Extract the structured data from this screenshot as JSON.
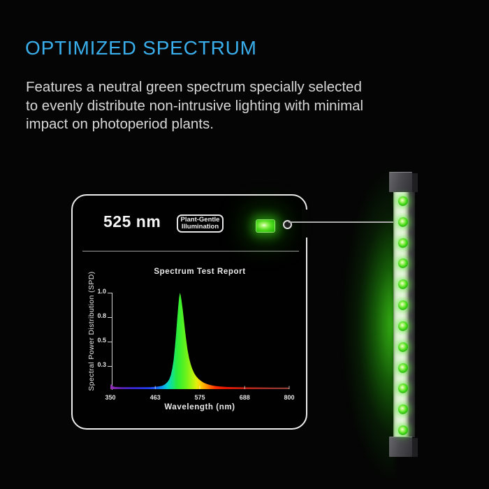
{
  "colors": {
    "background": "#050505",
    "accent_blue": "#3aaeea",
    "body_text": "#d8d8d8",
    "card_border": "#ededed",
    "led_green": "#3fd818",
    "glow_green": "#2bc40e",
    "callout_line": "#ababab"
  },
  "header": {
    "title": "OPTIMIZED SPECTRUM",
    "description": "Features a neutral green spectrum specially selected\nto evenly distribute non-intrusive lighting with minimal\nimpact on photoperiod plants."
  },
  "card": {
    "wavelength": "525 nm",
    "badge": {
      "line1": "Plant-Gentle",
      "line2": "Illumination"
    }
  },
  "chart_data": {
    "type": "area",
    "title": "Spectrum Test Report",
    "xlabel": "Wavelength (nm)",
    "ylabel": "Spectral Power Distribution (SPD)",
    "x_ticks": [
      350,
      463,
      575,
      688,
      800
    ],
    "y_tick_labels": [
      "1.0",
      "0.8",
      "0.5",
      "0.3"
    ],
    "xlim": [
      350,
      800
    ],
    "ylim": [
      0,
      1.0
    ],
    "peak_wavelength_nm": 525,
    "peak_value": 1.0,
    "grid": false,
    "points": [
      [
        350,
        0.02
      ],
      [
        351,
        0.052
      ],
      [
        353,
        0.046
      ],
      [
        356,
        0.03
      ],
      [
        360,
        0.023
      ],
      [
        380,
        0.02
      ],
      [
        420,
        0.02
      ],
      [
        450,
        0.02
      ],
      [
        463,
        0.023
      ],
      [
        472,
        0.027
      ],
      [
        480,
        0.034
      ],
      [
        487,
        0.048
      ],
      [
        493,
        0.07
      ],
      [
        498,
        0.1
      ],
      [
        502,
        0.145
      ],
      [
        506,
        0.215
      ],
      [
        509,
        0.3
      ],
      [
        512,
        0.42
      ],
      [
        515,
        0.56
      ],
      [
        518,
        0.72
      ],
      [
        521,
        0.87
      ],
      [
        523,
        0.95
      ],
      [
        525,
        1.0
      ],
      [
        527,
        0.97
      ],
      [
        529,
        0.92
      ],
      [
        532,
        0.83
      ],
      [
        535,
        0.72
      ],
      [
        538,
        0.6
      ],
      [
        541,
        0.5
      ],
      [
        544,
        0.41
      ],
      [
        548,
        0.325
      ],
      [
        552,
        0.26
      ],
      [
        556,
        0.21
      ],
      [
        561,
        0.165
      ],
      [
        566,
        0.132
      ],
      [
        572,
        0.105
      ],
      [
        578,
        0.085
      ],
      [
        585,
        0.066
      ],
      [
        593,
        0.052
      ],
      [
        602,
        0.041
      ],
      [
        612,
        0.033
      ],
      [
        625,
        0.027
      ],
      [
        645,
        0.022
      ],
      [
        670,
        0.02
      ],
      [
        688,
        0.019
      ],
      [
        720,
        0.018
      ],
      [
        760,
        0.017
      ],
      [
        800,
        0.016
      ]
    ],
    "spectrum_gradient": [
      {
        "offset": 0.0,
        "color": "#9b2fb7"
      },
      {
        "offset": 0.05,
        "color": "#6423b4"
      },
      {
        "offset": 0.13,
        "color": "#3928d8"
      },
      {
        "offset": 0.21,
        "color": "#233ff2"
      },
      {
        "offset": 0.25,
        "color": "#1f5bff"
      },
      {
        "offset": 0.29,
        "color": "#0b9cf1"
      },
      {
        "offset": 0.32,
        "color": "#07d5cb"
      },
      {
        "offset": 0.35,
        "color": "#17e37e"
      },
      {
        "offset": 0.37,
        "color": "#2aea3f"
      },
      {
        "offset": 0.39,
        "color": "#3cf02b"
      },
      {
        "offset": 0.42,
        "color": "#68f21c"
      },
      {
        "offset": 0.45,
        "color": "#9ff312"
      },
      {
        "offset": 0.48,
        "color": "#def00c"
      },
      {
        "offset": 0.5,
        "color": "#ffd503"
      },
      {
        "offset": 0.53,
        "color": "#ffa201"
      },
      {
        "offset": 0.56,
        "color": "#ff6300"
      },
      {
        "offset": 0.59,
        "color": "#fa2d00"
      },
      {
        "offset": 0.64,
        "color": "#e91700"
      },
      {
        "offset": 0.75,
        "color": "#c42113"
      },
      {
        "offset": 0.87,
        "color": "#a33027"
      },
      {
        "offset": 1.0,
        "color": "#8e423a"
      }
    ]
  },
  "light_bar": {
    "led_count": 12
  }
}
